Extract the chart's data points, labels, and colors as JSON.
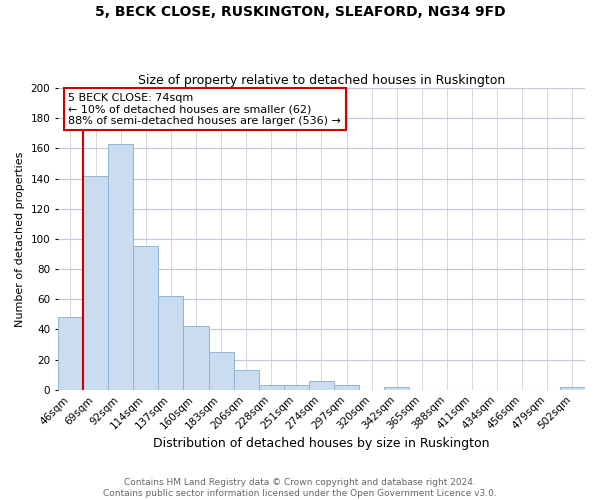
{
  "title": "5, BECK CLOSE, RUSKINGTON, SLEAFORD, NG34 9FD",
  "subtitle": "Size of property relative to detached houses in Ruskington",
  "xlabel": "Distribution of detached houses by size in Ruskington",
  "ylabel": "Number of detached properties",
  "bin_labels": [
    "46sqm",
    "69sqm",
    "92sqm",
    "114sqm",
    "137sqm",
    "160sqm",
    "183sqm",
    "206sqm",
    "228sqm",
    "251sqm",
    "274sqm",
    "297sqm",
    "320sqm",
    "342sqm",
    "365sqm",
    "388sqm",
    "411sqm",
    "434sqm",
    "456sqm",
    "479sqm",
    "502sqm"
  ],
  "bar_heights": [
    48,
    142,
    163,
    95,
    62,
    42,
    25,
    13,
    3,
    3,
    6,
    3,
    0,
    2,
    0,
    0,
    0,
    0,
    0,
    0,
    2
  ],
  "bar_color": "#c9dcf0",
  "bar_edge_color": "#92b4d4",
  "ylim": [
    0,
    200
  ],
  "yticks": [
    0,
    20,
    40,
    60,
    80,
    100,
    120,
    140,
    160,
    180,
    200
  ],
  "annotation_text": "5 BECK CLOSE: 74sqm\n← 10% of detached houses are smaller (62)\n88% of semi-detached houses are larger (536) →",
  "annotation_box_color": "#ffffff",
  "annotation_box_edge_color": "#cc0000",
  "footer_text": "Contains HM Land Registry data © Crown copyright and database right 2024.\nContains public sector information licensed under the Open Government Licence v3.0.",
  "bg_color": "#ffffff",
  "grid_color": "#c0c8d8",
  "red_line_color": "#cc0000",
  "title_fontsize": 10,
  "subtitle_fontsize": 9,
  "xlabel_fontsize": 9,
  "ylabel_fontsize": 8,
  "tick_fontsize": 7.5,
  "annotation_fontsize": 8,
  "footer_fontsize": 6.5
}
